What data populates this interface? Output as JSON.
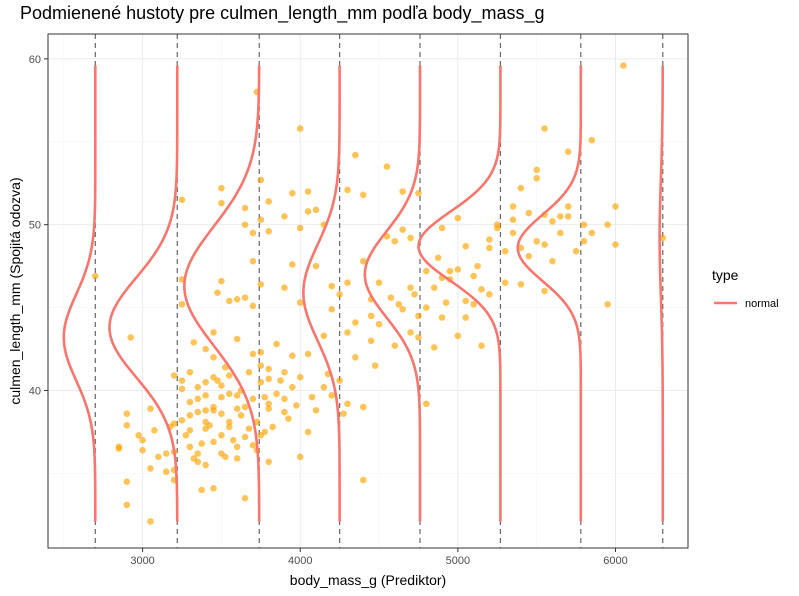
{
  "chart_data": {
    "type": "scatter",
    "title": "Podmienené hustoty pre culmen_length_mm podľa body_mass_g",
    "xlabel": "body_mass_g (Prediktor)",
    "ylabel": "culmen_length_mm (Spojitá odozva)",
    "xlim": [
      2400,
      6460
    ],
    "ylim": [
      30.5,
      61.5
    ],
    "x_ticks": [
      "3000",
      "4000",
      "5000",
      "6000"
    ],
    "y_ticks": [
      "40",
      "50",
      "60"
    ],
    "grid": true,
    "colors": {
      "points": "#FFA500",
      "density": "#F8766D",
      "vline": "#666666",
      "panel_border": "#333333",
      "grid_major": "#EBEBEB",
      "grid_minor": "#F5F5F5"
    },
    "legend": {
      "title": "type",
      "placement": "right",
      "entries": [
        {
          "label": "normal",
          "color": "#F8766D"
        }
      ]
    },
    "density_bins": [
      {
        "x": 2700,
        "mean": 43.2,
        "sd": 2.6,
        "scale_x": 200
      },
      {
        "x": 3220,
        "mean": 43.8,
        "sd": 3.0,
        "scale_x": 430
      },
      {
        "x": 3740,
        "mean": 46.3,
        "sd": 3.6,
        "scale_x": 475
      },
      {
        "x": 4250,
        "mean": 45.9,
        "sd": 2.9,
        "scale_x": 230
      },
      {
        "x": 4760,
        "mean": 47.0,
        "sd": 2.6,
        "scale_x": 350
      },
      {
        "x": 5270,
        "mean": 48.7,
        "sd": 2.1,
        "scale_x": 520
      },
      {
        "x": 5780,
        "mean": 48.6,
        "sd": 2.0,
        "scale_x": 400
      },
      {
        "x": 6300,
        "mean": 49.2,
        "sd": 3.5,
        "scale_x": 20
      }
    ],
    "density_range": [
      32.1,
      59.6
    ],
    "points": [
      [
        2700,
        46.9
      ],
      [
        2850,
        36.5
      ],
      [
        2850,
        36.6
      ],
      [
        2900,
        34.5
      ],
      [
        2900,
        33.1
      ],
      [
        2925,
        43.2
      ],
      [
        2900,
        38.6
      ],
      [
        2900,
        37.9
      ],
      [
        2975,
        37.3
      ],
      [
        3000,
        37.0
      ],
      [
        3000,
        36.4
      ],
      [
        3050,
        38.9
      ],
      [
        3050,
        32.1
      ],
      [
        3050,
        35.3
      ],
      [
        3075,
        37.6
      ],
      [
        3100,
        36.0
      ],
      [
        3150,
        35.1
      ],
      [
        3150,
        36.2
      ],
      [
        3175,
        37.8
      ],
      [
        3200,
        38.0
      ],
      [
        3200,
        36.3
      ],
      [
        3200,
        35.2
      ],
      [
        3200,
        34.6
      ],
      [
        3200,
        40.9
      ],
      [
        3250,
        38.2
      ],
      [
        3250,
        40.6
      ],
      [
        3250,
        40.1
      ],
      [
        3250,
        51.5
      ],
      [
        3250,
        46.7
      ],
      [
        3250,
        45.2
      ],
      [
        3275,
        37.3
      ],
      [
        3300,
        39.3
      ],
      [
        3300,
        38.5
      ],
      [
        3300,
        41.1
      ],
      [
        3300,
        37.6
      ],
      [
        3300,
        36.6
      ],
      [
        3325,
        35.9
      ],
      [
        3325,
        42.9
      ],
      [
        3350,
        39.5
      ],
      [
        3350,
        35.7
      ],
      [
        3350,
        36.2
      ],
      [
        3350,
        38.7
      ],
      [
        3350,
        40.2
      ],
      [
        3375,
        36.8
      ],
      [
        3375,
        34.0
      ],
      [
        3400,
        37.7
      ],
      [
        3400,
        42.5
      ],
      [
        3400,
        39.7
      ],
      [
        3400,
        40.5
      ],
      [
        3400,
        38.8
      ],
      [
        3400,
        38.1
      ],
      [
        3400,
        35.5
      ],
      [
        3425,
        37.9
      ],
      [
        3450,
        36.9
      ],
      [
        3450,
        38.8
      ],
      [
        3450,
        40.8
      ],
      [
        3450,
        43.5
      ],
      [
        3450,
        42.0
      ],
      [
        3450,
        39.0
      ],
      [
        3450,
        34.1
      ],
      [
        3475,
        40.6
      ],
      [
        3475,
        45.9
      ],
      [
        3500,
        36.2
      ],
      [
        3500,
        38.6
      ],
      [
        3500,
        39.6
      ],
      [
        3500,
        37.3
      ],
      [
        3500,
        40.3
      ],
      [
        3500,
        46.6
      ],
      [
        3500,
        52.2
      ],
      [
        3500,
        51.3
      ],
      [
        3525,
        36.0
      ],
      [
        3525,
        41.4
      ],
      [
        3550,
        37.8
      ],
      [
        3550,
        40.9
      ],
      [
        3550,
        45.4
      ],
      [
        3550,
        39.8
      ],
      [
        3550,
        38.1
      ],
      [
        3575,
        37.0
      ],
      [
        3600,
        38.9
      ],
      [
        3600,
        39.7
      ],
      [
        3600,
        36.6
      ],
      [
        3600,
        35.9
      ],
      [
        3600,
        43.1
      ],
      [
        3600,
        45.5
      ],
      [
        3625,
        38.5
      ],
      [
        3625,
        40.0
      ],
      [
        3650,
        33.5
      ],
      [
        3650,
        37.2
      ],
      [
        3650,
        39.0
      ],
      [
        3650,
        45.6
      ],
      [
        3650,
        50.0
      ],
      [
        3650,
        51.0
      ],
      [
        3675,
        41.1
      ],
      [
        3675,
        37.7
      ],
      [
        3700,
        42.2
      ],
      [
        3700,
        39.5
      ],
      [
        3700,
        36.7
      ],
      [
        3700,
        45.1
      ],
      [
        3700,
        47.8
      ],
      [
        3700,
        49.5
      ],
      [
        3725,
        36.4
      ],
      [
        3725,
        38.1
      ],
      [
        3725,
        58.0
      ],
      [
        3750,
        37.3
      ],
      [
        3750,
        41.5
      ],
      [
        3750,
        40.5
      ],
      [
        3750,
        42.3
      ],
      [
        3750,
        52.7
      ],
      [
        3750,
        50.3
      ],
      [
        3750,
        46.4
      ],
      [
        3775,
        39.6
      ],
      [
        3775,
        37.5
      ],
      [
        3800,
        38.9
      ],
      [
        3800,
        39.2
      ],
      [
        3800,
        35.7
      ],
      [
        3800,
        41.3
      ],
      [
        3800,
        40.7
      ],
      [
        3800,
        51.4
      ],
      [
        3800,
        49.6
      ],
      [
        3825,
        37.8
      ],
      [
        3850,
        39.8
      ],
      [
        3850,
        42.8
      ],
      [
        3875,
        40.6
      ],
      [
        3900,
        41.1
      ],
      [
        3900,
        38.7
      ],
      [
        3900,
        39.5
      ],
      [
        3900,
        50.5
      ],
      [
        3900,
        46.2
      ],
      [
        3925,
        38.3
      ],
      [
        3950,
        40.2
      ],
      [
        3950,
        42.1
      ],
      [
        3950,
        47.6
      ],
      [
        3950,
        51.9
      ],
      [
        3975,
        39.1
      ],
      [
        4000,
        36.0
      ],
      [
        4000,
        40.8
      ],
      [
        4000,
        45.3
      ],
      [
        4000,
        55.8
      ],
      [
        4000,
        49.8
      ],
      [
        4050,
        37.5
      ],
      [
        4050,
        42.2
      ],
      [
        4050,
        50.8
      ],
      [
        4050,
        52.0
      ],
      [
        4075,
        39.6
      ],
      [
        4100,
        38.8
      ],
      [
        4100,
        47.5
      ],
      [
        4100,
        50.9
      ],
      [
        4150,
        40.2
      ],
      [
        4150,
        43.3
      ],
      [
        4150,
        50.0
      ],
      [
        4175,
        41.0
      ],
      [
        4200,
        39.7
      ],
      [
        4200,
        44.9
      ],
      [
        4200,
        46.3
      ],
      [
        4250,
        40.6
      ],
      [
        4250,
        45.8
      ],
      [
        4275,
        38.6
      ],
      [
        4300,
        39.2
      ],
      [
        4300,
        43.5
      ],
      [
        4300,
        46.5
      ],
      [
        4300,
        52.1
      ],
      [
        4350,
        44.1
      ],
      [
        4350,
        42.0
      ],
      [
        4350,
        54.2
      ],
      [
        4400,
        39.0
      ],
      [
        4400,
        47.8
      ],
      [
        4400,
        51.8
      ],
      [
        4400,
        34.6
      ],
      [
        4450,
        45.5
      ],
      [
        4450,
        44.5
      ],
      [
        4450,
        43.0
      ],
      [
        4475,
        41.5
      ],
      [
        4500,
        46.5
      ],
      [
        4500,
        44.0
      ],
      [
        4550,
        49.3
      ],
      [
        4550,
        53.5
      ],
      [
        4575,
        45.6
      ],
      [
        4600,
        49.0
      ],
      [
        4600,
        42.7
      ],
      [
        4625,
        45.2
      ],
      [
        4650,
        49.7
      ],
      [
        4650,
        44.9
      ],
      [
        4650,
        52.0
      ],
      [
        4700,
        43.5
      ],
      [
        4700,
        46.2
      ],
      [
        4700,
        49.2
      ],
      [
        4725,
        45.8
      ],
      [
        4750,
        44.5
      ],
      [
        4750,
        43.2
      ],
      [
        4750,
        51.9
      ],
      [
        4800,
        39.2
      ],
      [
        4800,
        47.2
      ],
      [
        4800,
        45.0
      ],
      [
        4850,
        46.2
      ],
      [
        4850,
        42.6
      ],
      [
        4875,
        48.0
      ],
      [
        4900,
        44.4
      ],
      [
        4900,
        46.8
      ],
      [
        4900,
        49.8
      ],
      [
        4925,
        45.3
      ],
      [
        4950,
        47.2
      ],
      [
        4950,
        46.7
      ],
      [
        5000,
        47.3
      ],
      [
        5000,
        43.3
      ],
      [
        5000,
        50.4
      ],
      [
        5050,
        45.4
      ],
      [
        5050,
        48.7
      ],
      [
        5050,
        44.4
      ],
      [
        5100,
        45.2
      ],
      [
        5100,
        46.9
      ],
      [
        5125,
        47.5
      ],
      [
        5150,
        42.7
      ],
      [
        5150,
        46.1
      ],
      [
        5200,
        45.8
      ],
      [
        5200,
        49.1
      ],
      [
        5200,
        48.6
      ],
      [
        5250,
        49.8
      ],
      [
        5250,
        50.0
      ],
      [
        5300,
        48.4
      ],
      [
        5300,
        46.5
      ],
      [
        5350,
        50.3
      ],
      [
        5350,
        51.1
      ],
      [
        5350,
        49.5
      ],
      [
        5400,
        46.4
      ],
      [
        5400,
        48.6
      ],
      [
        5400,
        52.2
      ],
      [
        5450,
        50.7
      ],
      [
        5450,
        48.1
      ],
      [
        5500,
        49.0
      ],
      [
        5500,
        52.8
      ],
      [
        5500,
        53.3
      ],
      [
        5550,
        50.6
      ],
      [
        5550,
        48.8
      ],
      [
        5550,
        46.0
      ],
      [
        5550,
        55.8
      ],
      [
        5600,
        50.2
      ],
      [
        5600,
        47.8
      ],
      [
        5650,
        50.5
      ],
      [
        5650,
        49.5
      ],
      [
        5700,
        51.1
      ],
      [
        5700,
        54.4
      ],
      [
        5700,
        50.5
      ],
      [
        5750,
        48.4
      ],
      [
        5800,
        49.0
      ],
      [
        5800,
        50.0
      ],
      [
        5850,
        55.1
      ],
      [
        5850,
        49.5
      ],
      [
        5950,
        45.2
      ],
      [
        5950,
        50.0
      ],
      [
        6000,
        51.1
      ],
      [
        6000,
        48.8
      ],
      [
        6050,
        59.6
      ],
      [
        6300,
        49.2
      ]
    ]
  }
}
